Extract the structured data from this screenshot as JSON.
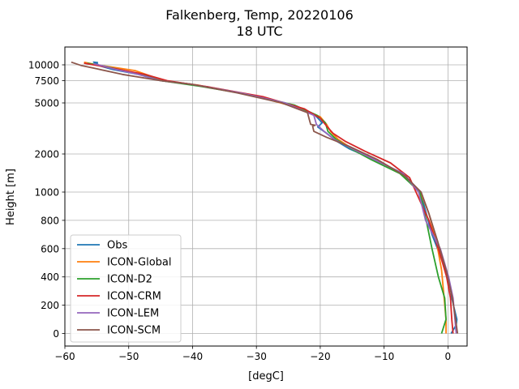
{
  "chart_data": {
    "type": "line",
    "title": "Falkenberg, Temp, 20220106",
    "subtitle": "18 UTC",
    "xlabel": "[degC]",
    "ylabel": "Height [m]",
    "xlim": [
      -60,
      3
    ],
    "x_ticks": [
      -60,
      -50,
      -40,
      -30,
      -20,
      -10,
      0
    ],
    "y_ticks": [
      {
        "label": "10000",
        "value": 10000
      },
      {
        "label": "7500",
        "value": 7500
      },
      {
        "label": "5000",
        "value": 5000
      },
      {
        "label": "2000",
        "value": 2000
      },
      {
        "label": "1000",
        "value": 1000
      },
      {
        "label": "800",
        "value": 800
      },
      {
        "label": "600",
        "value": 600
      },
      {
        "label": "400",
        "value": 400
      },
      {
        "label": "200",
        "value": 200
      },
      {
        "label": "0",
        "value": 0
      }
    ],
    "y_scale": "piecewise (linear 0-1000 m, logarithmic above 1000 m)",
    "grid": true,
    "legend_position": "lower-left",
    "series": [
      {
        "name": "Obs",
        "color": "#1f77b4",
        "points": [
          [
            0.5,
            0
          ],
          [
            1.3,
            60
          ],
          [
            1.4,
            100
          ],
          [
            0.6,
            250
          ],
          [
            0.4,
            320
          ],
          [
            -0.2,
            420
          ],
          [
            -1.2,
            550
          ],
          [
            -2.5,
            700
          ],
          [
            -4.3,
            1000
          ],
          [
            -7.0,
            1400
          ],
          [
            -11.5,
            1800
          ],
          [
            -15.5,
            2200
          ],
          [
            -17.6,
            2550
          ],
          [
            -19.0,
            2900
          ],
          [
            -20.4,
            3250
          ],
          [
            -19.7,
            3500
          ],
          [
            -20.8,
            4000
          ],
          [
            -25.5,
            5000
          ],
          [
            -32.5,
            6000
          ],
          [
            -40.0,
            7000
          ],
          [
            -45.0,
            7500
          ],
          [
            -48.5,
            8400
          ],
          [
            -52.5,
            9200
          ],
          [
            -54.5,
            9800
          ],
          [
            -55.0,
            10200
          ],
          [
            -55.5,
            10500
          ],
          [
            -54.8,
            10400
          ]
        ]
      },
      {
        "name": "ICON-Global",
        "color": "#ff7f0e",
        "points": [
          [
            -0.3,
            0
          ],
          [
            -0.3,
            100
          ],
          [
            -0.6,
            250
          ],
          [
            -1.0,
            450
          ],
          [
            -1.8,
            650
          ],
          [
            -3.0,
            850
          ],
          [
            -4.3,
            1000
          ],
          [
            -7.2,
            1400
          ],
          [
            -11.8,
            1800
          ],
          [
            -15.0,
            2200
          ],
          [
            -17.2,
            2600
          ],
          [
            -18.4,
            3000
          ],
          [
            -19.0,
            3400
          ],
          [
            -20.0,
            3900
          ],
          [
            -23.5,
            4600
          ],
          [
            -31.0,
            5800
          ],
          [
            -39.0,
            6900
          ],
          [
            -44.5,
            7500
          ],
          [
            -47.0,
            8300
          ],
          [
            -49.0,
            9000
          ],
          [
            -52.0,
            9500
          ],
          [
            -55.0,
            10000
          ],
          [
            -57.0,
            10500
          ]
        ]
      },
      {
        "name": "ICON-D2",
        "color": "#2ca02c",
        "points": [
          [
            -1.0,
            0
          ],
          [
            -0.3,
            100
          ],
          [
            -0.5,
            250
          ],
          [
            -1.5,
            400
          ],
          [
            -2.5,
            600
          ],
          [
            -3.4,
            800
          ],
          [
            -4.4,
            1000
          ],
          [
            -7.5,
            1400
          ],
          [
            -12.0,
            1800
          ],
          [
            -15.2,
            2200
          ],
          [
            -17.5,
            2600
          ],
          [
            -18.8,
            3000
          ],
          [
            -19.2,
            3500
          ],
          [
            -20.5,
            4000
          ],
          [
            -24.0,
            4800
          ],
          [
            -31.0,
            5800
          ],
          [
            -39.0,
            6800
          ],
          [
            -45.0,
            7500
          ],
          [
            -48.0,
            8400
          ],
          [
            -51.5,
            9200
          ],
          [
            -54.0,
            9800
          ],
          [
            -56.5,
            10300
          ]
        ]
      },
      {
        "name": "ICON-CRM",
        "color": "#d62728",
        "points": [
          [
            0.8,
            0
          ],
          [
            0.6,
            100
          ],
          [
            0.4,
            250
          ],
          [
            -0.2,
            400
          ],
          [
            -1.5,
            600
          ],
          [
            -3.0,
            800
          ],
          [
            -5.0,
            1000
          ],
          [
            -6.0,
            1300
          ],
          [
            -9.0,
            1700
          ],
          [
            -13.0,
            2100
          ],
          [
            -16.0,
            2500
          ],
          [
            -18.0,
            2900
          ],
          [
            -19.0,
            3300
          ],
          [
            -20.0,
            3800
          ],
          [
            -22.5,
            4500
          ],
          [
            -29.0,
            5600
          ],
          [
            -37.5,
            6700
          ],
          [
            -44.0,
            7500
          ],
          [
            -47.5,
            8400
          ],
          [
            -51.5,
            9200
          ],
          [
            -54.5,
            9800
          ],
          [
            -57.0,
            10300
          ]
        ]
      },
      {
        "name": "ICON-LEM",
        "color": "#9467bd",
        "points": [
          [
            1.3,
            0
          ],
          [
            1.1,
            100
          ],
          [
            0.8,
            250
          ],
          [
            0.1,
            400
          ],
          [
            -1.2,
            600
          ],
          [
            -3.5,
            800
          ],
          [
            -4.6,
            1000
          ],
          [
            -7.0,
            1400
          ],
          [
            -11.5,
            1800
          ],
          [
            -15.0,
            2200
          ],
          [
            -17.8,
            2600
          ],
          [
            -19.4,
            3000
          ],
          [
            -20.6,
            3400
          ],
          [
            -21.0,
            4000
          ],
          [
            -25.5,
            5000
          ],
          [
            -32.5,
            6000
          ],
          [
            -40.0,
            7000
          ],
          [
            -45.0,
            7500
          ],
          [
            -48.5,
            8400
          ],
          [
            -52.0,
            9200
          ],
          [
            -54.0,
            9800
          ],
          [
            -55.5,
            10200
          ]
        ]
      },
      {
        "name": "ICON-SCM",
        "color": "#8c564b",
        "points": [
          [
            1.5,
            0
          ],
          [
            1.2,
            100
          ],
          [
            0.7,
            250
          ],
          [
            -0.3,
            450
          ],
          [
            -1.6,
            650
          ],
          [
            -3.0,
            850
          ],
          [
            -4.2,
            1000
          ],
          [
            -6.8,
            1350
          ],
          [
            -11.0,
            1800
          ],
          [
            -15.5,
            2300
          ],
          [
            -19.0,
            2700
          ],
          [
            -21.0,
            3000
          ],
          [
            -21.2,
            3300
          ],
          [
            -20.8,
            3350
          ],
          [
            -21.5,
            3400
          ],
          [
            -21.7,
            3700
          ],
          [
            -22.0,
            4200
          ],
          [
            -26.0,
            5000
          ],
          [
            -33.0,
            6000
          ],
          [
            -40.0,
            7000
          ],
          [
            -45.0,
            7500
          ],
          [
            -51.0,
            8400
          ],
          [
            -55.0,
            9300
          ],
          [
            -57.5,
            9900
          ],
          [
            -59.0,
            10500
          ]
        ]
      }
    ]
  }
}
